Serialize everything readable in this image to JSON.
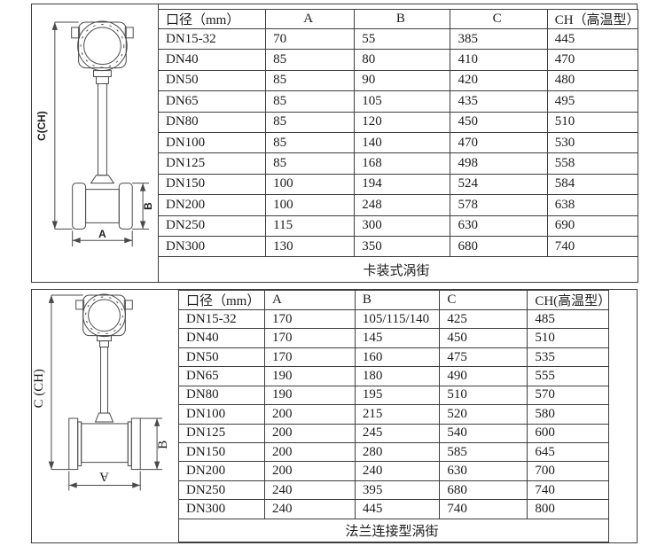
{
  "doc": {
    "colors": {
      "background": "#ffffff",
      "line": "#3d3d3d",
      "text": "#1c1c1c"
    },
    "sections": [
      {
        "name": "wafer",
        "drawing": {
          "dim_height_label": "C(CH)",
          "dim_body_label": "B",
          "dim_width_label": "A"
        },
        "table": {
          "headers": [
            "口径（mm）",
            "A",
            "B",
            "C",
            "CH（高温型）"
          ],
          "rows": [
            [
              "DN15-32",
              "70",
              "55",
              "385",
              "445"
            ],
            [
              "DN40",
              "85",
              "80",
              "410",
              "470"
            ],
            [
              "DN50",
              "85",
              "90",
              "420",
              "480"
            ],
            [
              "DN65",
              "85",
              "105",
              "435",
              "495"
            ],
            [
              "DN80",
              "85",
              "120",
              "450",
              "510"
            ],
            [
              "DN100",
              "85",
              "140",
              "470",
              "530"
            ],
            [
              "DN125",
              "85",
              "168",
              "498",
              "558"
            ],
            [
              "DN150",
              "100",
              "194",
              "524",
              "584"
            ],
            [
              "DN200",
              "100",
              "248",
              "578",
              "638"
            ],
            [
              "DN250",
              "115",
              "300",
              "630",
              "690"
            ],
            [
              "DN300",
              "130",
              "350",
              "680",
              "740"
            ]
          ],
          "footer": "卡装式涡街"
        }
      },
      {
        "name": "flange",
        "drawing": {
          "dim_height_label": "C (CH)",
          "dim_body_label": "B",
          "dim_width_label": "A"
        },
        "table": {
          "headers": [
            "口径（mm）",
            "A",
            "B",
            "C",
            "CH(高温型）"
          ],
          "rows": [
            [
              "DN15-32",
              "170",
              "105/115/140",
              "425",
              "485"
            ],
            [
              "DN40",
              "170",
              "145",
              "450",
              "510"
            ],
            [
              "DN50",
              "170",
              "160",
              "475",
              "535"
            ],
            [
              "DN65",
              "190",
              "180",
              "490",
              "555"
            ],
            [
              "DN80",
              "190",
              "195",
              "510",
              "570"
            ],
            [
              "DN100",
              "200",
              "215",
              "520",
              "580"
            ],
            [
              "DN125",
              "200",
              "245",
              "540",
              "600"
            ],
            [
              "DN150",
              "200",
              "280",
              "585",
              "645"
            ],
            [
              "DN200",
              "200",
              "240",
              "630",
              "700"
            ],
            [
              "DN250",
              "240",
              "395",
              "680",
              "740"
            ],
            [
              "DN300",
              "240",
              "445",
              "740",
              "800"
            ]
          ],
          "footer": "法兰连接型涡街"
        }
      }
    ]
  }
}
